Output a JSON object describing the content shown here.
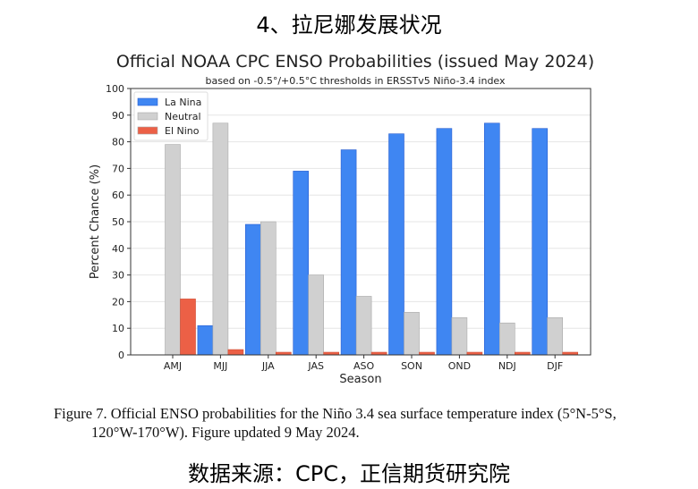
{
  "heading": "4、拉尼娜发展状况",
  "caption": {
    "line1": "Figure 7. Official ENSO probabilities for the Niño 3.4 sea surface temperature index (5°N-5°S,",
    "line2": "120°W-170°W). Figure updated 9 May 2024."
  },
  "footer": "数据来源：CPC，正信期货研究院",
  "chart_data": {
    "type": "bar",
    "title": "Official NOAA CPC ENSO Probabilities (issued May 2024)",
    "subtitle": "based on -0.5°/+0.5°C thresholds in ERSSTv5 Niño-3.4 index",
    "xlabel": "Season",
    "ylabel": "Percent Chance (%)",
    "ylim": [
      0,
      100
    ],
    "yticks": [
      0,
      10,
      20,
      30,
      40,
      50,
      60,
      70,
      80,
      90,
      100
    ],
    "grid": true,
    "legend_position": "top-left",
    "categories": [
      "AMJ",
      "MJJ",
      "JJA",
      "JAS",
      "ASO",
      "SON",
      "OND",
      "NDJ",
      "DJF"
    ],
    "series": [
      {
        "name": "La Nina",
        "color": "#3f86f2",
        "values": [
          0,
          11,
          49,
          69,
          77,
          83,
          85,
          87,
          85
        ]
      },
      {
        "name": "Neutral",
        "color": "#d0d0d0",
        "values": [
          79,
          87,
          50,
          30,
          22,
          16,
          14,
          12,
          14
        ]
      },
      {
        "name": "El Nino",
        "color": "#ec6046",
        "values": [
          21,
          2,
          1,
          1,
          1,
          1,
          1,
          1,
          1
        ]
      }
    ]
  }
}
